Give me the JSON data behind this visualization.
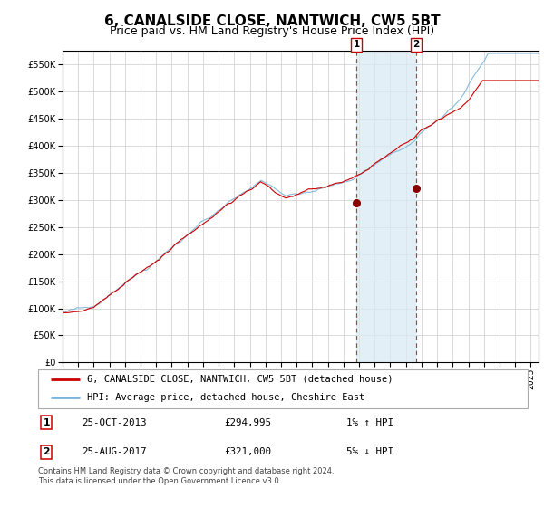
{
  "title": "6, CANALSIDE CLOSE, NANTWICH, CW5 5BT",
  "subtitle": "Price paid vs. HM Land Registry's House Price Index (HPI)",
  "hpi_label": "HPI: Average price, detached house, Cheshire East",
  "property_label": "6, CANALSIDE CLOSE, NANTWICH, CW5 5BT (detached house)",
  "marker1_date": "25-OCT-2013",
  "marker1_price": 294995,
  "marker1_info": "1% ↑ HPI",
  "marker2_date": "25-AUG-2017",
  "marker2_price": 321000,
  "marker2_info": "5% ↓ HPI",
  "footer": "Contains HM Land Registry data © Crown copyright and database right 2024.\nThis data is licensed under the Open Government Licence v3.0.",
  "hpi_color": "#7ab4d8",
  "property_color": "#cc0000",
  "marker_color": "#8b0000",
  "dashed_color": "#cc3333",
  "shade_color": "#daeaf5",
  "grid_color": "#cccccc",
  "bg_color": "#ffffff",
  "ylim": [
    0,
    575000
  ],
  "yticks": [
    0,
    50000,
    100000,
    150000,
    200000,
    250000,
    300000,
    350000,
    400000,
    450000,
    500000,
    550000
  ],
  "xlim_start": 1995.0,
  "xlim_end": 2025.5,
  "marker1_x": 2013.82,
  "marker2_x": 2017.65,
  "title_fontsize": 11,
  "subtitle_fontsize": 9,
  "tick_fontsize": 7,
  "legend_fontsize": 7.5,
  "footer_fontsize": 6
}
